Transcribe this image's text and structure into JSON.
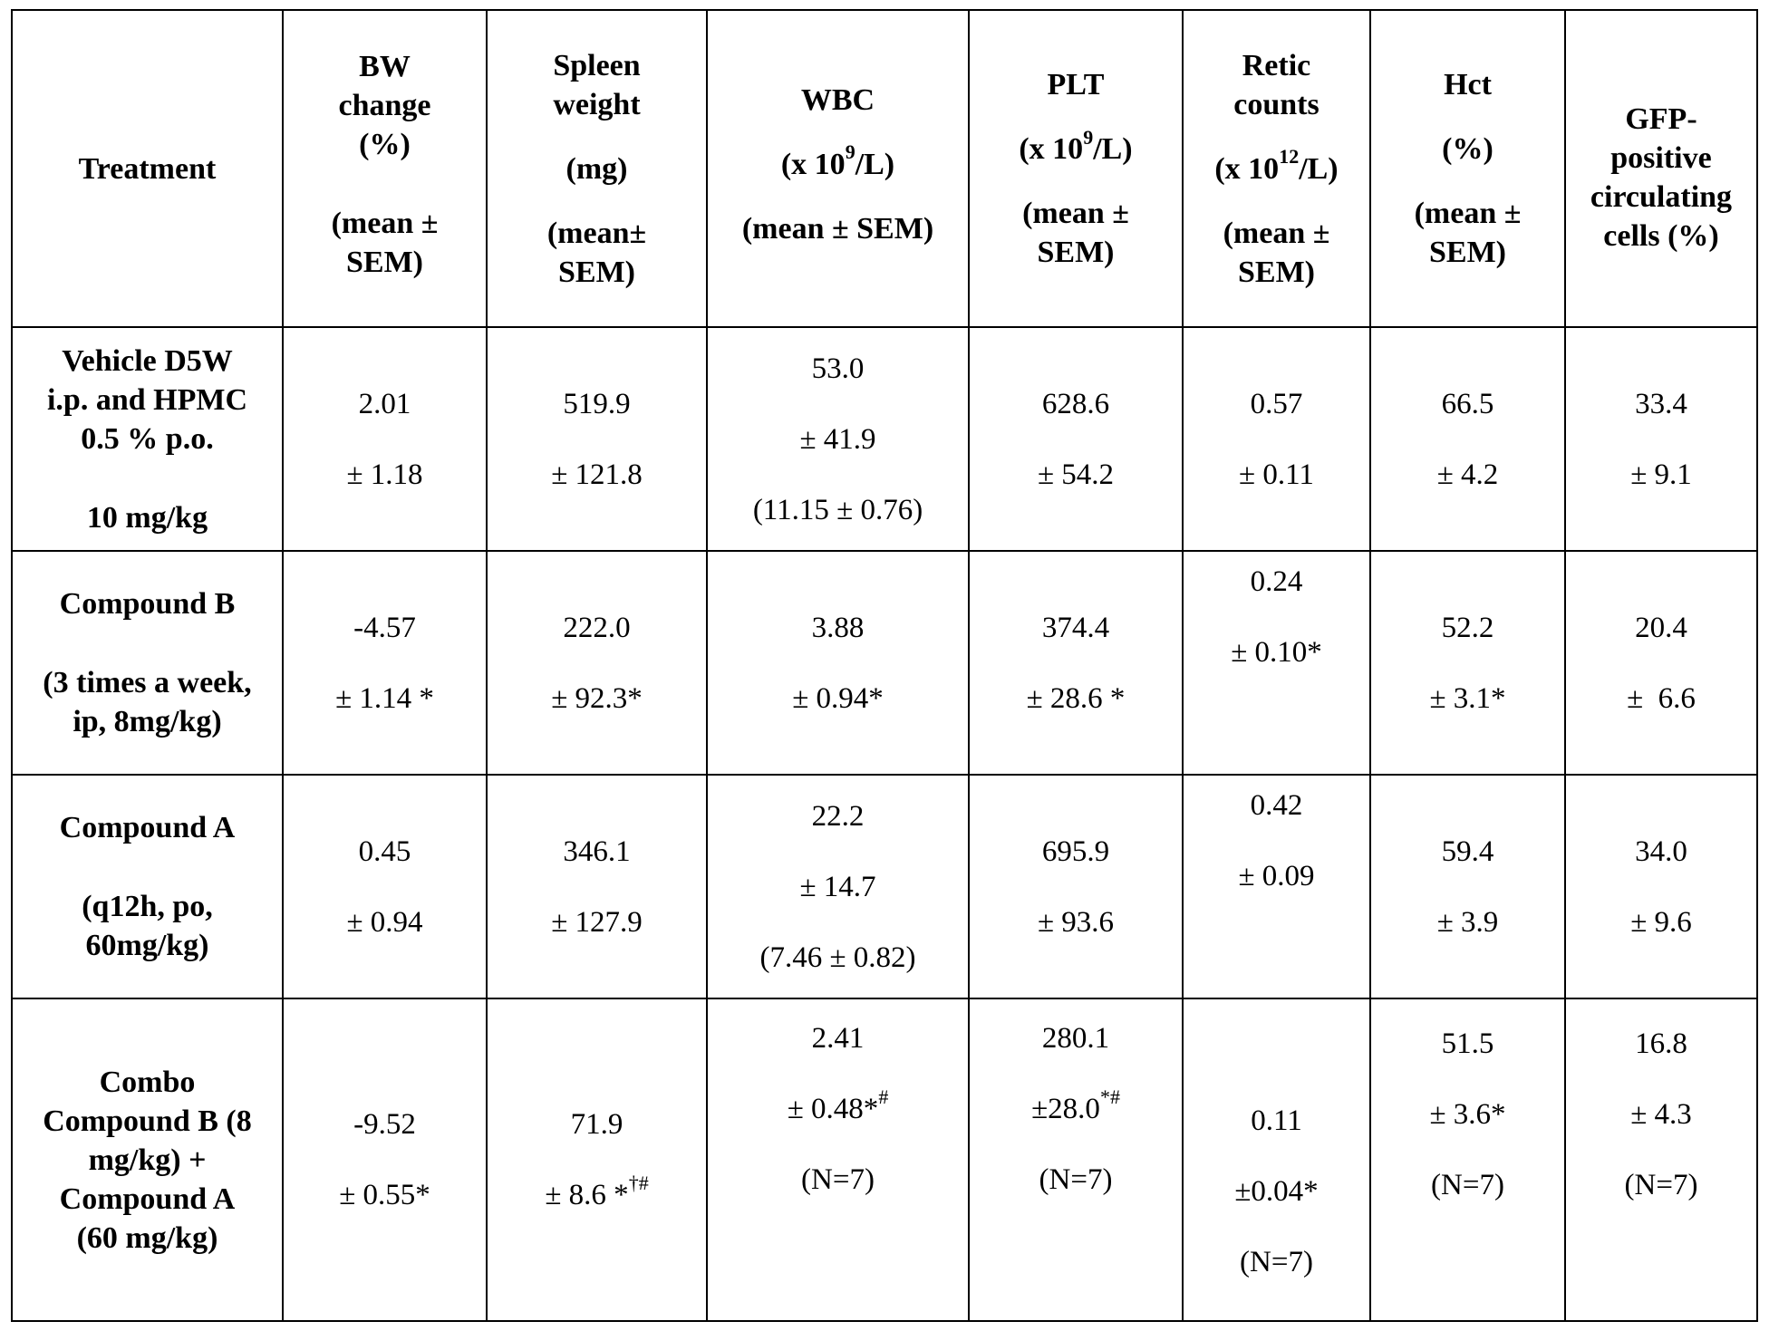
{
  "headers": {
    "treatment": "Treatment",
    "bw": {
      "l1": "BW",
      "l2": "change",
      "l3": "(%)",
      "l4": "(mean ±",
      "l5": "SEM)"
    },
    "spleen": {
      "l1": "Spleen",
      "l2": "weight",
      "l3": "(mg)",
      "l4": "(mean±",
      "l5": "SEM)"
    },
    "wbc": {
      "l1": "WBC",
      "l2a": "(x 10",
      "l2sup": "9",
      "l2b": "/L)",
      "l3": "(mean ±  SEM)"
    },
    "plt": {
      "l1": "PLT",
      "l2a": "(x 10",
      "l2sup": "9",
      "l2b": "/L)",
      "l3": "(mean ±",
      "l4": "SEM)"
    },
    "retic": {
      "l1": "Retic",
      "l2": "counts",
      "l3a": "(x 10",
      "l3sup": "12",
      "l3b": "/L)",
      "l4": "(mean ±",
      "l5": "SEM)"
    },
    "hct": {
      "l1": "Hct",
      "l2": "(%)",
      "l3": "(mean ±",
      "l4": "SEM)"
    },
    "gfp": {
      "l1": "GFP-",
      "l2": "positive",
      "l3": "circulating",
      "l4": "cells (%)"
    }
  },
  "rows": [
    {
      "treatment": {
        "l1": "Vehicle D5W",
        "l2": "i.p. and HPMC",
        "l3": "0.5 % p.o.",
        "l4": "10 mg/kg"
      },
      "bw": {
        "mean": "2.01",
        "sem": "± 1.18"
      },
      "spleen": {
        "mean": "519.9",
        "sem": "± 121.8"
      },
      "wbc": {
        "mean": "53.0",
        "sem": "± 41.9",
        "extra": "(11.15 ± 0.76)"
      },
      "plt": {
        "mean": "628.6",
        "sem": "± 54.2"
      },
      "retic": {
        "mean": "0.57",
        "sem": "± 0.11"
      },
      "hct": {
        "mean": "66.5",
        "sem": "± 4.2"
      },
      "gfp": {
        "mean": "33.4",
        "sem": "± 9.1"
      }
    },
    {
      "treatment": {
        "l1": "Compound B",
        "l2": "(3 times a week,",
        "l3": "ip, 8mg/kg)"
      },
      "bw": {
        "mean": "-4.57",
        "sem": "± 1.14 *"
      },
      "spleen": {
        "mean": "222.0",
        "sem": "± 92.3*"
      },
      "wbc": {
        "mean": "3.88",
        "sem": "± 0.94*"
      },
      "plt": {
        "mean": "374.4",
        "sem": "± 28.6 *"
      },
      "retic": {
        "mean": "0.24",
        "sem": "± 0.10*"
      },
      "hct": {
        "mean": "52.2",
        "sem": "± 3.1*"
      },
      "gfp": {
        "mean": "20.4",
        "sem": "±  6.6"
      }
    },
    {
      "treatment": {
        "l1": "Compound A",
        "l2": "(q12h, po,",
        "l3": "60mg/kg)"
      },
      "bw": {
        "mean": "0.45",
        "sem": "± 0.94"
      },
      "spleen": {
        "mean": "346.1",
        "sem": "± 127.9"
      },
      "wbc": {
        "mean": "22.2",
        "sem": "± 14.7",
        "extra": "(7.46 ± 0.82)"
      },
      "plt": {
        "mean": "695.9",
        "sem": "± 93.6"
      },
      "retic": {
        "mean": "0.42",
        "sem": "± 0.09"
      },
      "hct": {
        "mean": "59.4",
        "sem": "± 3.9"
      },
      "gfp": {
        "mean": "34.0",
        "sem": "± 9.6"
      }
    },
    {
      "treatment": {
        "l1": "Combo",
        "l2": "Compound B (8",
        "l3": "mg/kg) +",
        "l4": "Compound A",
        "l5": "(60 mg/kg)"
      },
      "bw": {
        "mean": "-9.52",
        "sem": "± 0.55*"
      },
      "spleen": {
        "mean": "71.9",
        "sem": "± 8.6 *",
        "sem_sup": "†#"
      },
      "wbc": {
        "mean": "2.41",
        "sem": "± 0.48*",
        "sem_sup": "#",
        "n": "(N=7)"
      },
      "plt": {
        "mean": "280.1",
        "sem": "±28.0",
        "sem_sup": "*#",
        "n": "(N=7)"
      },
      "retic": {
        "mean": "0.11",
        "sem": "±0.04*",
        "n": "(N=7)"
      },
      "hct": {
        "mean": "51.5",
        "sem": "± 3.6*",
        "n": "(N=7)"
      },
      "gfp": {
        "mean": "16.8",
        "sem": "± 4.3",
        "n": "(N=7)"
      }
    }
  ]
}
